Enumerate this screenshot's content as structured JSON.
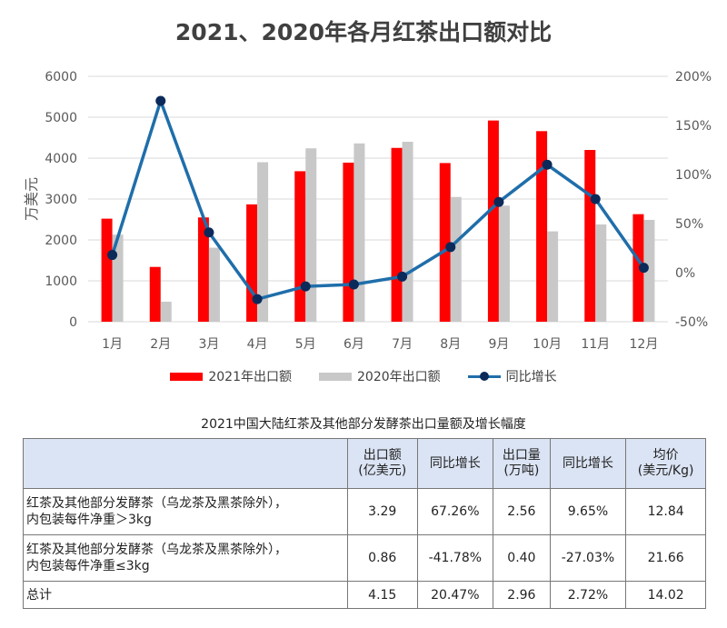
{
  "title": "2021、2020年各月红茶出口额对比",
  "chart_data": {
    "type": "bar",
    "title": "2021、2020年各月红茶出口额对比",
    "categories": [
      "1月",
      "2月",
      "3月",
      "4月",
      "5月",
      "6月",
      "7月",
      "8月",
      "9月",
      "10月",
      "11月",
      "12月"
    ],
    "ylabel": "万美元",
    "ylim": [
      0,
      6000
    ],
    "yticks": [
      "0",
      "1000",
      "2000",
      "3000",
      "4000",
      "5000",
      "6000"
    ],
    "y2lim": [
      -50,
      200
    ],
    "y2ticks": [
      "-50%",
      "0%",
      "50%",
      "100%",
      "150%",
      "200%"
    ],
    "grid": true,
    "legend": "bottom",
    "series": [
      {
        "name": "2021年出口额",
        "type": "bar",
        "color": "#ff0000",
        "values": [
          2520,
          1340,
          2550,
          2870,
          3680,
          3890,
          4250,
          3880,
          4920,
          4660,
          4200,
          2630
        ]
      },
      {
        "name": "2020年出口额",
        "type": "bar",
        "color": "#c8c8c8",
        "values": [
          2130,
          490,
          1810,
          3900,
          4240,
          4360,
          4400,
          3050,
          2840,
          2210,
          2380,
          2490
        ]
      },
      {
        "name": "同比增长",
        "type": "line",
        "axis": "right",
        "unit": "%",
        "color": "#1f6eaa",
        "values": [
          18,
          175,
          41,
          -27,
          -14,
          -12,
          -4,
          26,
          72,
          110,
          75,
          5
        ]
      }
    ]
  },
  "table": {
    "caption": "2021中国大陆红茶及其他部分发酵茶出口量额及增长幅度",
    "headers": [
      [
        "",
        ""
      ],
      [
        "出口额",
        "(亿美元)"
      ],
      [
        "同比增长",
        ""
      ],
      [
        "出口量",
        "(万吨)"
      ],
      [
        "同比增长",
        ""
      ],
      [
        "均价",
        "(美元/Kg)"
      ]
    ],
    "rows": [
      {
        "name": [
          "红茶及其他部分发酵茶（乌龙茶及黑茶除外），",
          "内包装每件净重＞3kg"
        ],
        "cells": [
          "3.29",
          "67.26%",
          "2.56",
          "9.65%",
          "12.84"
        ]
      },
      {
        "name": [
          "红茶及其他部分发酵茶（乌龙茶及黑茶除外），",
          "内包装每件净重≤3kg"
        ],
        "cells": [
          "0.86",
          "-41.78%",
          "0.40",
          "-27.03%",
          "21.66"
        ]
      },
      {
        "name": [
          "总计",
          ""
        ],
        "cells": [
          "4.15",
          "20.47%",
          "2.96",
          "2.72%",
          "14.02"
        ]
      }
    ]
  }
}
